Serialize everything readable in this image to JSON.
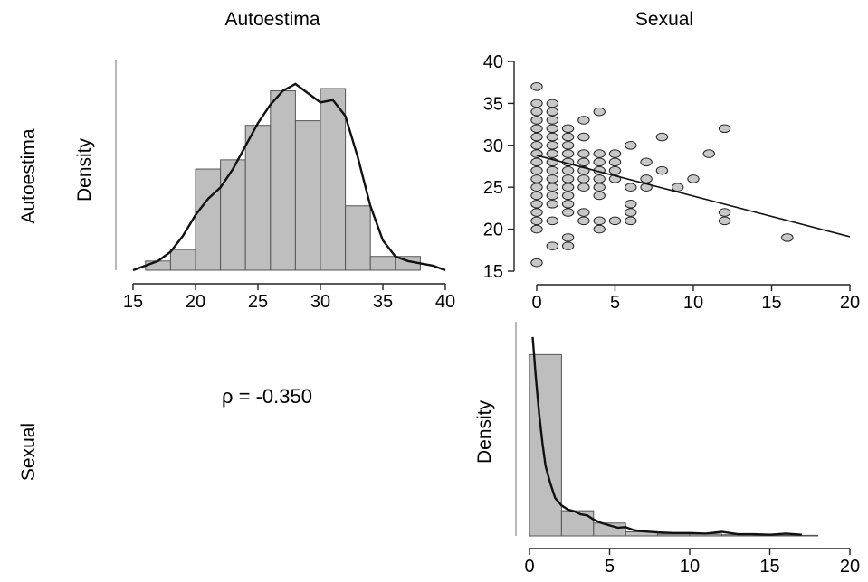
{
  "variables": [
    "Autoestima",
    "Sexual"
  ],
  "density_label": "Density",
  "correlation": {
    "text": "ρ = -0.350",
    "value": -0.35
  },
  "chart_data": [
    {
      "id": "hist-autoestima",
      "type": "bar",
      "title": "",
      "xlabel": "",
      "ylabel": "Density",
      "xlim": [
        15,
        40
      ],
      "x_ticks": [
        15,
        20,
        25,
        30,
        35,
        40
      ],
      "bin_edges": [
        16,
        18,
        20,
        22,
        24,
        26,
        28,
        30,
        32,
        34,
        36,
        38
      ],
      "values": [
        0.004,
        0.009,
        0.044,
        0.048,
        0.063,
        0.078,
        0.065,
        0.079,
        0.028,
        0.006,
        0.006
      ],
      "ymax": 0.09,
      "density_curve": {
        "x": [
          15,
          16,
          17,
          18,
          19,
          20,
          21,
          22,
          23,
          24,
          25,
          26,
          27,
          28,
          29,
          30,
          31,
          32,
          33,
          34,
          35,
          36,
          37,
          38,
          39,
          40
        ],
        "y": [
          0.0,
          0.002,
          0.004,
          0.008,
          0.015,
          0.024,
          0.031,
          0.036,
          0.044,
          0.054,
          0.064,
          0.072,
          0.078,
          0.081,
          0.077,
          0.073,
          0.074,
          0.067,
          0.049,
          0.028,
          0.013,
          0.006,
          0.004,
          0.003,
          0.002,
          0.0
        ]
      }
    },
    {
      "id": "scatter-sexual-autoestima",
      "type": "scatter",
      "title": "",
      "xlim": [
        0,
        20
      ],
      "ylim": [
        15,
        40
      ],
      "x_ticks": [
        0,
        5,
        10,
        15,
        20
      ],
      "y_ticks": [
        15,
        20,
        25,
        30,
        35,
        40
      ],
      "points": [
        [
          0,
          16
        ],
        [
          0,
          20
        ],
        [
          0,
          21
        ],
        [
          0,
          22
        ],
        [
          0,
          23
        ],
        [
          0,
          24
        ],
        [
          0,
          25
        ],
        [
          0,
          26
        ],
        [
          0,
          27
        ],
        [
          0,
          28
        ],
        [
          0,
          29
        ],
        [
          0,
          30
        ],
        [
          0,
          31
        ],
        [
          0,
          32
        ],
        [
          0,
          33
        ],
        [
          0,
          34
        ],
        [
          0,
          35
        ],
        [
          0,
          37
        ],
        [
          1,
          18
        ],
        [
          1,
          21
        ],
        [
          1,
          23
        ],
        [
          1,
          24
        ],
        [
          1,
          25
        ],
        [
          1,
          26
        ],
        [
          1,
          27
        ],
        [
          1,
          28
        ],
        [
          1,
          29
        ],
        [
          1,
          30
        ],
        [
          1,
          31
        ],
        [
          1,
          32
        ],
        [
          1,
          33
        ],
        [
          1,
          34
        ],
        [
          1,
          35
        ],
        [
          2,
          18
        ],
        [
          2,
          19
        ],
        [
          2,
          22
        ],
        [
          2,
          23
        ],
        [
          2,
          24
        ],
        [
          2,
          25
        ],
        [
          2,
          26
        ],
        [
          2,
          27
        ],
        [
          2,
          28
        ],
        [
          2,
          29
        ],
        [
          2,
          30
        ],
        [
          2,
          31
        ],
        [
          2,
          32
        ],
        [
          3,
          21
        ],
        [
          3,
          22
        ],
        [
          3,
          25
        ],
        [
          3,
          26
        ],
        [
          3,
          27
        ],
        [
          3,
          28
        ],
        [
          3,
          29
        ],
        [
          3,
          31
        ],
        [
          3,
          33
        ],
        [
          4,
          20
        ],
        [
          4,
          21
        ],
        [
          4,
          24
        ],
        [
          4,
          25
        ],
        [
          4,
          26
        ],
        [
          4,
          27
        ],
        [
          4,
          28
        ],
        [
          4,
          29
        ],
        [
          4,
          34
        ],
        [
          5,
          21
        ],
        [
          5,
          26
        ],
        [
          5,
          27
        ],
        [
          5,
          28
        ],
        [
          5,
          29
        ],
        [
          6,
          21
        ],
        [
          6,
          22
        ],
        [
          6,
          23
        ],
        [
          6,
          25
        ],
        [
          6,
          30
        ],
        [
          7,
          25
        ],
        [
          7,
          26
        ],
        [
          7,
          28
        ],
        [
          8,
          27
        ],
        [
          8,
          31
        ],
        [
          9,
          25
        ],
        [
          10,
          26
        ],
        [
          11,
          29
        ],
        [
          12,
          21
        ],
        [
          12,
          22
        ],
        [
          12,
          32
        ],
        [
          16,
          19
        ]
      ],
      "fit_line": {
        "x": [
          0,
          20
        ],
        "y": [
          28.8,
          19.1
        ]
      }
    },
    {
      "id": "hist-sexual",
      "type": "bar",
      "title": "",
      "xlabel": "",
      "ylabel": "Density",
      "xlim": [
        0,
        20
      ],
      "x_ticks": [
        0,
        5,
        10,
        15,
        20
      ],
      "bin_edges": [
        0,
        2,
        4,
        6,
        8,
        10,
        12,
        14,
        16,
        18
      ],
      "values": [
        0.31,
        0.043,
        0.022,
        0.007,
        0.003,
        0.003,
        0.002,
        0.001,
        0.001
      ],
      "ymax": 0.36,
      "density_curve": {
        "x": [
          0.2,
          0.4,
          0.6,
          0.8,
          1.0,
          1.3,
          1.6,
          2.0,
          2.4,
          2.8,
          3.2,
          3.6,
          4.0,
          4.5,
          5.0,
          5.5,
          6.0,
          6.5,
          7.0,
          8.0,
          9.0,
          10.0,
          11.0,
          12.0,
          13.0,
          14.0,
          15.0,
          16.0,
          17.0
        ],
        "y": [
          0.34,
          0.27,
          0.21,
          0.16,
          0.12,
          0.09,
          0.065,
          0.052,
          0.045,
          0.042,
          0.037,
          0.035,
          0.028,
          0.022,
          0.018,
          0.014,
          0.015,
          0.01,
          0.008,
          0.006,
          0.005,
          0.005,
          0.004,
          0.007,
          0.003,
          0.003,
          0.002,
          0.004,
          0.002
        ]
      }
    }
  ]
}
